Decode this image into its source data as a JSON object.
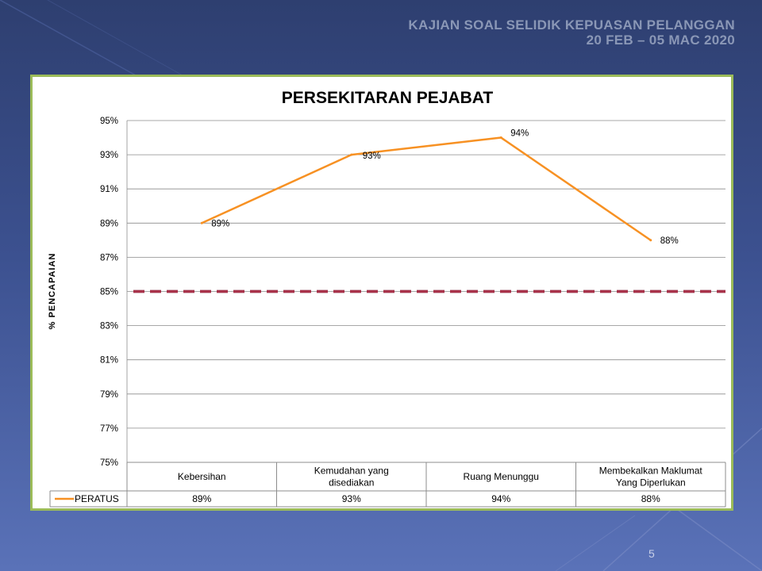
{
  "header": {
    "line1": "KAJIAN SOAL SELIDIK KEPUASAN PELANGGAN",
    "line2": "20 FEB – 05 MAC 2020"
  },
  "slide_number": "5",
  "colors": {
    "series": "#f79123",
    "target": "#a8324a",
    "frame": "#9bbb59"
  },
  "chart_data": {
    "type": "line",
    "title": "PERSEKITARAN PEJABAT",
    "ylabel": "% PENCAPAIAN",
    "xlabel": "",
    "ylim": [
      75,
      95
    ],
    "yticks": [
      "75%",
      "77%",
      "79%",
      "81%",
      "83%",
      "85%",
      "87%",
      "89%",
      "91%",
      "93%",
      "95%"
    ],
    "categories": [
      [
        "Kebersihan"
      ],
      [
        "Kemudahan yang",
        "disediakan"
      ],
      [
        "Ruang Menunggu"
      ],
      [
        "Membekalkan Maklumat",
        "Yang Diperlukan"
      ]
    ],
    "series": [
      {
        "name": "PERATUS",
        "values": [
          89,
          93,
          94,
          88
        ],
        "labels": [
          "89%",
          "93%",
          "94%",
          "88%"
        ]
      }
    ],
    "target_line": {
      "value": 85,
      "style": "dashed"
    },
    "grid": true,
    "legend": "data-table"
  }
}
